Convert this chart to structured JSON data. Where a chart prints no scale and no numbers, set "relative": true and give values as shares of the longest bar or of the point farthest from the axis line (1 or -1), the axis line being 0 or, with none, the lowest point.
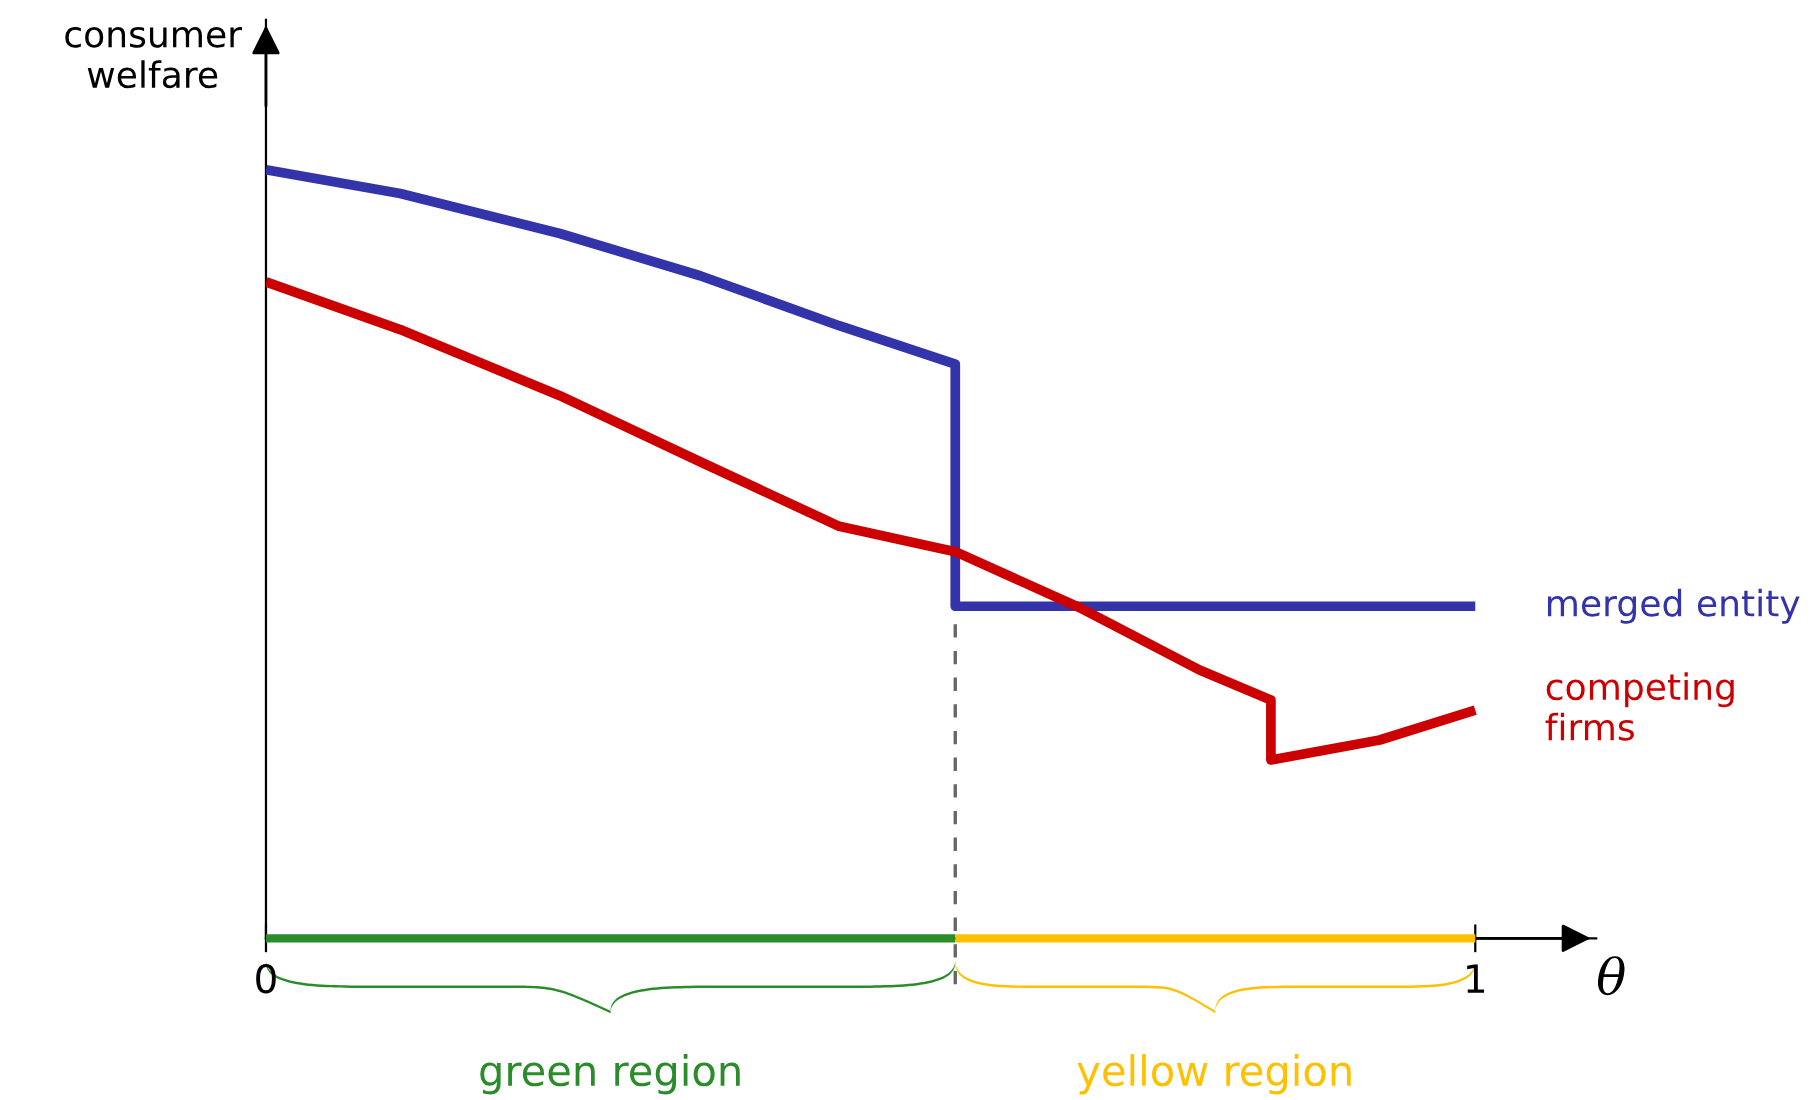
{
  "chart_data": {
    "type": "line",
    "relative": true,
    "xlabel": "θ",
    "ylabel": "consumer welfare",
    "xlim": [
      0,
      1.1
    ],
    "xticks": [
      0,
      1
    ],
    "series": [
      {
        "name": "merged entity",
        "color": "#3333aa",
        "x": [
          0,
          0.111,
          0.243,
          0.359,
          0.474,
          0.57,
          0.57,
          1.0
        ],
        "values": [
          1.0,
          0.969,
          0.917,
          0.862,
          0.797,
          0.747,
          0.432,
          0.432
        ]
      },
      {
        "name": "competing firms",
        "color": "#cc0000",
        "x": [
          0,
          0.111,
          0.243,
          0.359,
          0.474,
          0.57,
          0.673,
          0.772,
          0.831,
          0.831,
          0.921,
          1.0
        ],
        "values": [
          0.854,
          0.792,
          0.706,
          0.62,
          0.536,
          0.503,
          0.43,
          0.349,
          0.31,
          0.232,
          0.258,
          0.297
        ]
      },
      {
        "color": "#2a8c2a",
        "x": [
          0,
          0.57
        ],
        "values": [
          0,
          0
        ]
      },
      {
        "color": "#ffc000",
        "x": [
          0.57,
          1.0
        ],
        "values": [
          0,
          0
        ]
      }
    ],
    "ref_lines": [
      {
        "axis": "x",
        "value": 0.57,
        "color": "#666666",
        "line_style": "dashed"
      }
    ],
    "annotations": [
      "green region",
      "yellow region"
    ]
  }
}
